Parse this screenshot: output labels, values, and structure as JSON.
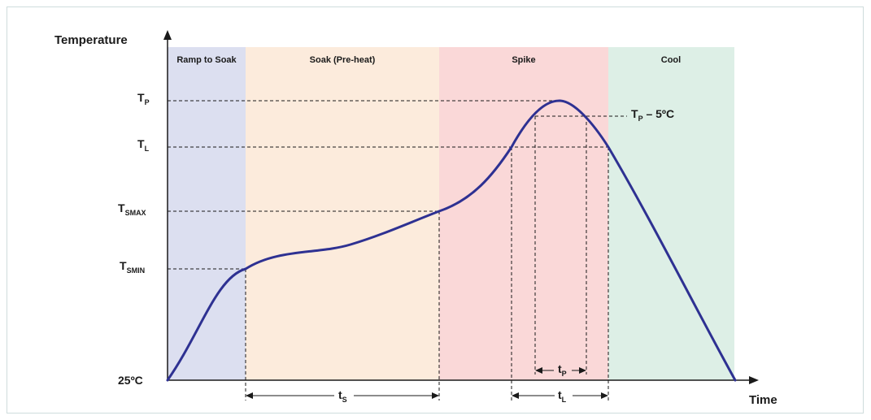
{
  "title": "",
  "axes": {
    "y_label": "Temperature",
    "x_label": "Time",
    "origin_label": "25ºC"
  },
  "zones": [
    {
      "id": "ramp",
      "label": "Ramp to Soak",
      "color": "#dcdff0"
    },
    {
      "id": "soak",
      "label": "Soak (Pre-heat)",
      "color": "#fcebdc"
    },
    {
      "id": "spike",
      "label": "Spike",
      "color": "#fad8d8"
    },
    {
      "id": "cool",
      "label": "Cool",
      "color": "#ddefe6"
    }
  ],
  "temps": {
    "tp": {
      "main": "T",
      "sub": "P"
    },
    "tl": {
      "main": "T",
      "sub": "L"
    },
    "tsmax": {
      "main": "T",
      "sub": "SMAX"
    },
    "tsmin": {
      "main": "T",
      "sub": "SMIN"
    },
    "tp5": {
      "main": "T",
      "sub": "P",
      "suffix": " – 5ºC"
    }
  },
  "intervals": {
    "ts": {
      "main": "t",
      "sub": "S"
    },
    "tl": {
      "main": "t",
      "sub": "L"
    },
    "tp": {
      "main": "t",
      "sub": "P"
    }
  },
  "colors": {
    "curve": "#2e3192",
    "ink": "#1a1a1a"
  }
}
